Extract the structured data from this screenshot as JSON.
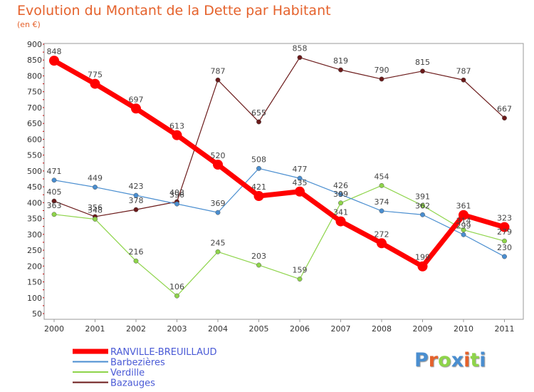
{
  "chart_data": {
    "type": "line",
    "title": "Evolution du Montant de la Dette par Habitant",
    "subtitle": "(en €)",
    "xlabel": "",
    "ylabel": "",
    "categories": [
      "2000",
      "2001",
      "2002",
      "2003",
      "2004",
      "2005",
      "2006",
      "2007",
      "2008",
      "2009",
      "2010",
      "2011"
    ],
    "ylim": [
      50,
      900
    ],
    "yticks": [
      50,
      100,
      150,
      200,
      250,
      300,
      350,
      400,
      450,
      500,
      550,
      600,
      650,
      700,
      750,
      800,
      850,
      900
    ],
    "grid": false,
    "legend_position": "bottom-left",
    "series": [
      {
        "name": "RANVILLE-BREUILLAUD",
        "color": "#ff0000",
        "values": [
          848,
          775,
          697,
          613,
          520,
          421,
          435,
          341,
          272,
          199,
          361,
          323
        ]
      },
      {
        "name": "Barbezières",
        "color": "#4a8ed0",
        "values": [
          471,
          449,
          423,
          396,
          369,
          508,
          477,
          426,
          374,
          362,
          299,
          230
        ]
      },
      {
        "name": "Verdille",
        "color": "#8ed44a",
        "values": [
          363,
          348,
          216,
          106,
          245,
          203,
          159,
          399,
          454,
          391,
          314,
          279
        ]
      },
      {
        "name": "Bazauges",
        "color": "#6b1a1a",
        "values": [
          405,
          356,
          378,
          403,
          787,
          655,
          858,
          819,
          790,
          815,
          787,
          667
        ]
      }
    ]
  },
  "legend": {
    "text_color": "#4a5ad6"
  },
  "logo": {
    "letters": [
      "P",
      "r",
      "o",
      "x",
      "i",
      "t",
      "i"
    ],
    "colors": [
      "#4a8ed0",
      "#e5622c",
      "#8ed44a",
      "#4a8ed0",
      "#e5622c",
      "#8ed44a",
      "#4a8ed0"
    ]
  }
}
